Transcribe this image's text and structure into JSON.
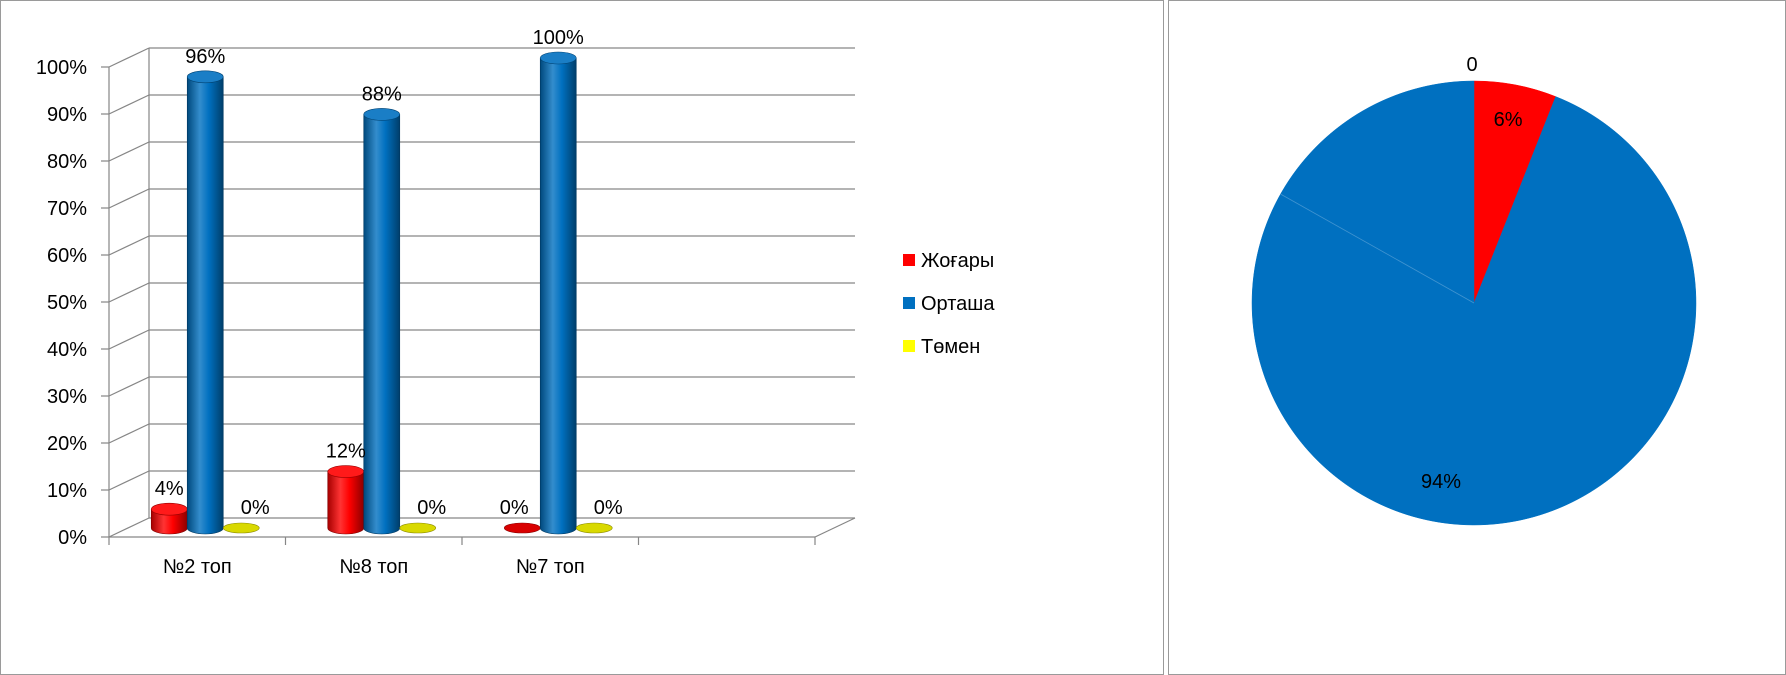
{
  "colors": {
    "red": "#ff0000",
    "blue": "#0070c0",
    "yellow": "#ffff00"
  },
  "chart_data": [
    {
      "type": "bar",
      "subtype": "3d-cylinder",
      "title": "",
      "categories": [
        "№2 топ",
        "№8 топ",
        "№7 топ"
      ],
      "series": [
        {
          "name": "Жоғары",
          "color": "#ff0000",
          "values": [
            4,
            12,
            0
          ],
          "labels": [
            "4%",
            "12%",
            "0%"
          ]
        },
        {
          "name": "Орташа",
          "color": "#0070c0",
          "values": [
            96,
            88,
            100
          ],
          "labels": [
            "96%",
            "88%",
            "100%"
          ]
        },
        {
          "name": "Төмен",
          "color": "#ffff00",
          "values": [
            0,
            0,
            0
          ],
          "labels": [
            "0%",
            "0%",
            "0%"
          ]
        }
      ],
      "ylim": [
        0,
        100
      ],
      "yticks": [
        "0%",
        "10%",
        "20%",
        "30%",
        "40%",
        "50%",
        "60%",
        "70%",
        "80%",
        "90%",
        "100%"
      ],
      "grid": true,
      "legend": "right"
    },
    {
      "type": "pie",
      "slices": [
        {
          "value": 0,
          "label": "0",
          "color": "#ffff00"
        },
        {
          "value": 6,
          "label": "6%",
          "color": "#ff0000"
        },
        {
          "value": 94,
          "label": "94%",
          "color": "#0070c0"
        }
      ],
      "legend": "none"
    }
  ]
}
